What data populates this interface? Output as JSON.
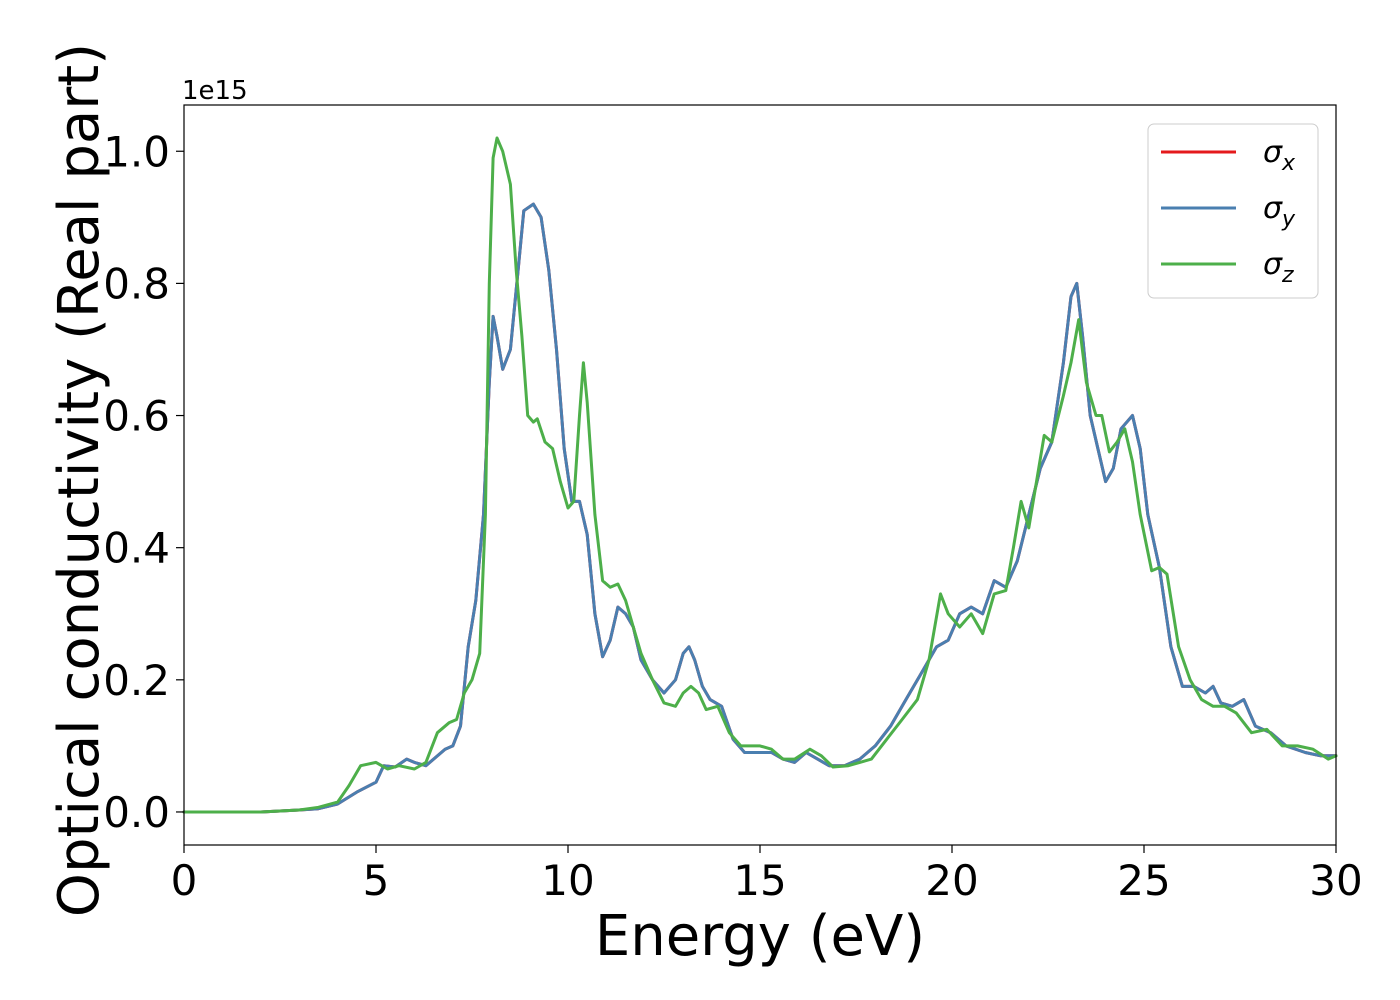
{
  "chart_data": {
    "type": "line",
    "xlabel": "Energy (eV)",
    "ylabel": "Optical conductivity (Real part)",
    "y_offset_label": "1e15",
    "xlim": [
      0,
      30
    ],
    "ylim": [
      -0.05,
      1.07
    ],
    "xticks": [
      0,
      5,
      10,
      15,
      20,
      25,
      30
    ],
    "xtick_labels": [
      "0",
      "5",
      "10",
      "15",
      "20",
      "25",
      "30"
    ],
    "yticks": [
      0.0,
      0.2,
      0.4,
      0.6,
      0.8,
      1.0
    ],
    "ytick_labels": [
      "0.0",
      "0.2",
      "0.4",
      "0.6",
      "0.8",
      "1.0"
    ],
    "grid": false,
    "legend_position": "top-right",
    "series": [
      {
        "name": "σx",
        "legend_base": "σ",
        "legend_sub": "x",
        "color": "#e41a1c",
        "points": [
          [
            0,
            0
          ],
          [
            2,
            0
          ],
          [
            3,
            0.003
          ],
          [
            3.5,
            0.005
          ],
          [
            4,
            0.012
          ],
          [
            4.5,
            0.03
          ],
          [
            5,
            0.045
          ],
          [
            5.2,
            0.07
          ],
          [
            5.5,
            0.068
          ],
          [
            5.8,
            0.08
          ],
          [
            6,
            0.075
          ],
          [
            6.3,
            0.07
          ],
          [
            6.5,
            0.08
          ],
          [
            6.8,
            0.095
          ],
          [
            7,
            0.1
          ],
          [
            7.2,
            0.13
          ],
          [
            7.4,
            0.25
          ],
          [
            7.6,
            0.32
          ],
          [
            7.8,
            0.45
          ],
          [
            7.95,
            0.65
          ],
          [
            8.05,
            0.75
          ],
          [
            8.15,
            0.72
          ],
          [
            8.3,
            0.67
          ],
          [
            8.5,
            0.7
          ],
          [
            8.7,
            0.82
          ],
          [
            8.85,
            0.91
          ],
          [
            9.1,
            0.92
          ],
          [
            9.3,
            0.9
          ],
          [
            9.5,
            0.82
          ],
          [
            9.7,
            0.7
          ],
          [
            9.9,
            0.55
          ],
          [
            10.1,
            0.47
          ],
          [
            10.3,
            0.47
          ],
          [
            10.5,
            0.42
          ],
          [
            10.7,
            0.3
          ],
          [
            10.9,
            0.235
          ],
          [
            11.1,
            0.26
          ],
          [
            11.3,
            0.31
          ],
          [
            11.5,
            0.3
          ],
          [
            11.7,
            0.28
          ],
          [
            11.9,
            0.23
          ],
          [
            12.2,
            0.2
          ],
          [
            12.5,
            0.18
          ],
          [
            12.8,
            0.2
          ],
          [
            13,
            0.24
          ],
          [
            13.15,
            0.25
          ],
          [
            13.3,
            0.23
          ],
          [
            13.5,
            0.19
          ],
          [
            13.7,
            0.17
          ],
          [
            14,
            0.16
          ],
          [
            14.3,
            0.11
          ],
          [
            14.6,
            0.09
          ],
          [
            15,
            0.09
          ],
          [
            15.3,
            0.09
          ],
          [
            15.6,
            0.08
          ],
          [
            15.9,
            0.075
          ],
          [
            16.2,
            0.09
          ],
          [
            16.5,
            0.08
          ],
          [
            16.8,
            0.07
          ],
          [
            17.2,
            0.07
          ],
          [
            17.6,
            0.08
          ],
          [
            18,
            0.1
          ],
          [
            18.4,
            0.13
          ],
          [
            18.8,
            0.17
          ],
          [
            19.2,
            0.21
          ],
          [
            19.6,
            0.25
          ],
          [
            19.9,
            0.26
          ],
          [
            20.2,
            0.3
          ],
          [
            20.5,
            0.31
          ],
          [
            20.8,
            0.3
          ],
          [
            21.1,
            0.35
          ],
          [
            21.4,
            0.34
          ],
          [
            21.7,
            0.38
          ],
          [
            22,
            0.45
          ],
          [
            22.3,
            0.52
          ],
          [
            22.6,
            0.56
          ],
          [
            22.9,
            0.68
          ],
          [
            23.1,
            0.78
          ],
          [
            23.25,
            0.8
          ],
          [
            23.4,
            0.72
          ],
          [
            23.6,
            0.6
          ],
          [
            23.8,
            0.55
          ],
          [
            24,
            0.5
          ],
          [
            24.2,
            0.52
          ],
          [
            24.4,
            0.58
          ],
          [
            24.7,
            0.6
          ],
          [
            24.9,
            0.55
          ],
          [
            25.1,
            0.45
          ],
          [
            25.4,
            0.37
          ],
          [
            25.7,
            0.25
          ],
          [
            26,
            0.19
          ],
          [
            26.3,
            0.19
          ],
          [
            26.6,
            0.18
          ],
          [
            26.8,
            0.19
          ],
          [
            27,
            0.165
          ],
          [
            27.3,
            0.16
          ],
          [
            27.6,
            0.17
          ],
          [
            27.9,
            0.13
          ],
          [
            28.3,
            0.12
          ],
          [
            28.7,
            0.1
          ],
          [
            29.2,
            0.09
          ],
          [
            29.6,
            0.085
          ],
          [
            30,
            0.085
          ]
        ]
      },
      {
        "name": "σy",
        "legend_base": "σ",
        "legend_sub": "y",
        "color": "#4a7fb0",
        "points": [
          [
            0,
            0
          ],
          [
            2,
            0
          ],
          [
            3,
            0.003
          ],
          [
            3.5,
            0.005
          ],
          [
            4,
            0.012
          ],
          [
            4.5,
            0.03
          ],
          [
            5,
            0.045
          ],
          [
            5.2,
            0.07
          ],
          [
            5.5,
            0.068
          ],
          [
            5.8,
            0.08
          ],
          [
            6,
            0.075
          ],
          [
            6.3,
            0.07
          ],
          [
            6.5,
            0.08
          ],
          [
            6.8,
            0.095
          ],
          [
            7,
            0.1
          ],
          [
            7.2,
            0.13
          ],
          [
            7.4,
            0.25
          ],
          [
            7.6,
            0.32
          ],
          [
            7.8,
            0.45
          ],
          [
            7.95,
            0.65
          ],
          [
            8.05,
            0.75
          ],
          [
            8.15,
            0.72
          ],
          [
            8.3,
            0.67
          ],
          [
            8.5,
            0.7
          ],
          [
            8.7,
            0.82
          ],
          [
            8.85,
            0.91
          ],
          [
            9.1,
            0.92
          ],
          [
            9.3,
            0.9
          ],
          [
            9.5,
            0.82
          ],
          [
            9.7,
            0.7
          ],
          [
            9.9,
            0.55
          ],
          [
            10.1,
            0.47
          ],
          [
            10.3,
            0.47
          ],
          [
            10.5,
            0.42
          ],
          [
            10.7,
            0.3
          ],
          [
            10.9,
            0.235
          ],
          [
            11.1,
            0.26
          ],
          [
            11.3,
            0.31
          ],
          [
            11.5,
            0.3
          ],
          [
            11.7,
            0.28
          ],
          [
            11.9,
            0.23
          ],
          [
            12.2,
            0.2
          ],
          [
            12.5,
            0.18
          ],
          [
            12.8,
            0.2
          ],
          [
            13,
            0.24
          ],
          [
            13.15,
            0.25
          ],
          [
            13.3,
            0.23
          ],
          [
            13.5,
            0.19
          ],
          [
            13.7,
            0.17
          ],
          [
            14,
            0.16
          ],
          [
            14.3,
            0.11
          ],
          [
            14.6,
            0.09
          ],
          [
            15,
            0.09
          ],
          [
            15.3,
            0.09
          ],
          [
            15.6,
            0.08
          ],
          [
            15.9,
            0.075
          ],
          [
            16.2,
            0.09
          ],
          [
            16.5,
            0.08
          ],
          [
            16.8,
            0.07
          ],
          [
            17.2,
            0.07
          ],
          [
            17.6,
            0.08
          ],
          [
            18,
            0.1
          ],
          [
            18.4,
            0.13
          ],
          [
            18.8,
            0.17
          ],
          [
            19.2,
            0.21
          ],
          [
            19.6,
            0.25
          ],
          [
            19.9,
            0.26
          ],
          [
            20.2,
            0.3
          ],
          [
            20.5,
            0.31
          ],
          [
            20.8,
            0.3
          ],
          [
            21.1,
            0.35
          ],
          [
            21.4,
            0.34
          ],
          [
            21.7,
            0.38
          ],
          [
            22,
            0.45
          ],
          [
            22.3,
            0.52
          ],
          [
            22.6,
            0.56
          ],
          [
            22.9,
            0.68
          ],
          [
            23.1,
            0.78
          ],
          [
            23.25,
            0.8
          ],
          [
            23.4,
            0.72
          ],
          [
            23.6,
            0.6
          ],
          [
            23.8,
            0.55
          ],
          [
            24,
            0.5
          ],
          [
            24.2,
            0.52
          ],
          [
            24.4,
            0.58
          ],
          [
            24.7,
            0.6
          ],
          [
            24.9,
            0.55
          ],
          [
            25.1,
            0.45
          ],
          [
            25.4,
            0.37
          ],
          [
            25.7,
            0.25
          ],
          [
            26,
            0.19
          ],
          [
            26.3,
            0.19
          ],
          [
            26.6,
            0.18
          ],
          [
            26.8,
            0.19
          ],
          [
            27,
            0.165
          ],
          [
            27.3,
            0.16
          ],
          [
            27.6,
            0.17
          ],
          [
            27.9,
            0.13
          ],
          [
            28.3,
            0.12
          ],
          [
            28.7,
            0.1
          ],
          [
            29.2,
            0.09
          ],
          [
            29.6,
            0.085
          ],
          [
            30,
            0.085
          ]
        ]
      },
      {
        "name": "σz",
        "legend_base": "σ",
        "legend_sub": "z",
        "color": "#4daf4a",
        "points": [
          [
            0,
            0
          ],
          [
            2,
            0
          ],
          [
            3,
            0.003
          ],
          [
            3.5,
            0.007
          ],
          [
            4,
            0.015
          ],
          [
            4.3,
            0.04
          ],
          [
            4.6,
            0.07
          ],
          [
            5,
            0.075
          ],
          [
            5.3,
            0.065
          ],
          [
            5.6,
            0.07
          ],
          [
            6,
            0.065
          ],
          [
            6.3,
            0.075
          ],
          [
            6.6,
            0.12
          ],
          [
            6.9,
            0.135
          ],
          [
            7.1,
            0.14
          ],
          [
            7.3,
            0.18
          ],
          [
            7.5,
            0.2
          ],
          [
            7.7,
            0.24
          ],
          [
            7.85,
            0.45
          ],
          [
            7.95,
            0.8
          ],
          [
            8.05,
            0.99
          ],
          [
            8.15,
            1.02
          ],
          [
            8.3,
            1.0
          ],
          [
            8.5,
            0.95
          ],
          [
            8.65,
            0.82
          ],
          [
            8.8,
            0.72
          ],
          [
            8.95,
            0.6
          ],
          [
            9.1,
            0.59
          ],
          [
            9.2,
            0.595
          ],
          [
            9.4,
            0.56
          ],
          [
            9.6,
            0.55
          ],
          [
            9.8,
            0.5
          ],
          [
            10.0,
            0.46
          ],
          [
            10.15,
            0.47
          ],
          [
            10.3,
            0.6
          ],
          [
            10.4,
            0.68
          ],
          [
            10.5,
            0.62
          ],
          [
            10.7,
            0.45
          ],
          [
            10.9,
            0.35
          ],
          [
            11.1,
            0.34
          ],
          [
            11.3,
            0.345
          ],
          [
            11.5,
            0.32
          ],
          [
            11.7,
            0.28
          ],
          [
            11.9,
            0.24
          ],
          [
            12.2,
            0.2
          ],
          [
            12.5,
            0.165
          ],
          [
            12.8,
            0.16
          ],
          [
            13.0,
            0.18
          ],
          [
            13.2,
            0.19
          ],
          [
            13.4,
            0.18
          ],
          [
            13.6,
            0.155
          ],
          [
            13.9,
            0.16
          ],
          [
            14.2,
            0.12
          ],
          [
            14.5,
            0.1
          ],
          [
            15,
            0.1
          ],
          [
            15.3,
            0.095
          ],
          [
            15.6,
            0.08
          ],
          [
            15.9,
            0.08
          ],
          [
            16.3,
            0.095
          ],
          [
            16.6,
            0.085
          ],
          [
            16.9,
            0.068
          ],
          [
            17.3,
            0.07
          ],
          [
            17.6,
            0.075
          ],
          [
            17.9,
            0.08
          ],
          [
            18.3,
            0.11
          ],
          [
            18.7,
            0.14
          ],
          [
            19.1,
            0.17
          ],
          [
            19.4,
            0.23
          ],
          [
            19.7,
            0.33
          ],
          [
            19.9,
            0.3
          ],
          [
            20.2,
            0.28
          ],
          [
            20.5,
            0.3
          ],
          [
            20.8,
            0.27
          ],
          [
            21.1,
            0.33
          ],
          [
            21.4,
            0.335
          ],
          [
            21.6,
            0.4
          ],
          [
            21.8,
            0.47
          ],
          [
            22.0,
            0.43
          ],
          [
            22.2,
            0.5
          ],
          [
            22.4,
            0.57
          ],
          [
            22.6,
            0.56
          ],
          [
            22.9,
            0.63
          ],
          [
            23.1,
            0.68
          ],
          [
            23.3,
            0.745
          ],
          [
            23.5,
            0.65
          ],
          [
            23.75,
            0.6
          ],
          [
            23.9,
            0.6
          ],
          [
            24.1,
            0.545
          ],
          [
            24.3,
            0.56
          ],
          [
            24.5,
            0.58
          ],
          [
            24.7,
            0.53
          ],
          [
            24.9,
            0.45
          ],
          [
            25.2,
            0.365
          ],
          [
            25.4,
            0.37
          ],
          [
            25.6,
            0.36
          ],
          [
            25.9,
            0.25
          ],
          [
            26.2,
            0.2
          ],
          [
            26.5,
            0.17
          ],
          [
            26.8,
            0.16
          ],
          [
            27.1,
            0.16
          ],
          [
            27.4,
            0.15
          ],
          [
            27.8,
            0.12
          ],
          [
            28.2,
            0.125
          ],
          [
            28.6,
            0.1
          ],
          [
            29.0,
            0.1
          ],
          [
            29.4,
            0.095
          ],
          [
            29.8,
            0.08
          ],
          [
            30,
            0.085
          ]
        ]
      }
    ]
  }
}
